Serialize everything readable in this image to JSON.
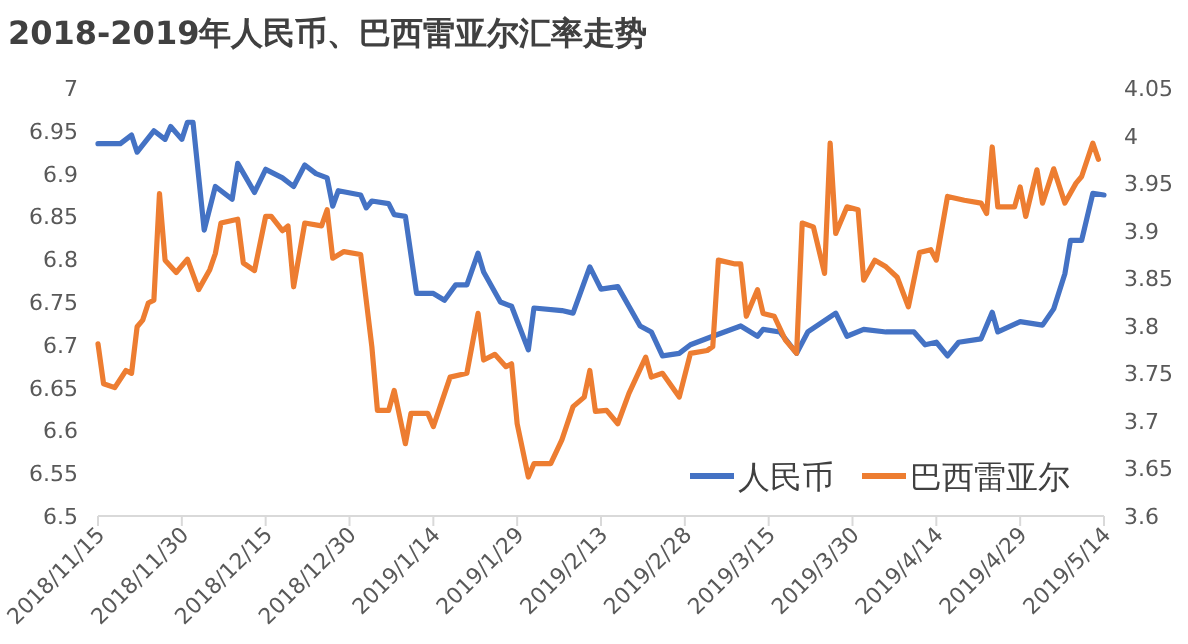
{
  "chart_data": {
    "type": "line",
    "title": "2018-2019年人民币、巴西雷亚尔汇率走势",
    "xlim": [
      "2018-11-15",
      "2019-05-14"
    ],
    "xticks": [
      {
        "value": "2018-11-15",
        "label": "2018/11/15"
      },
      {
        "value": "2018-11-30",
        "label": "2018/11/30"
      },
      {
        "value": "2018-12-15",
        "label": "2018/12/15"
      },
      {
        "value": "2018-12-30",
        "label": "2018/12/30"
      },
      {
        "value": "2019-01-14",
        "label": "2019/1/14"
      },
      {
        "value": "2019-01-29",
        "label": "2019/1/29"
      },
      {
        "value": "2019-02-13",
        "label": "2019/2/13"
      },
      {
        "value": "2019-02-28",
        "label": "2019/2/28"
      },
      {
        "value": "2019-03-15",
        "label": "2019/3/15"
      },
      {
        "value": "2019-03-30",
        "label": "2019/3/30"
      },
      {
        "value": "2019-04-14",
        "label": "2019/4/14"
      },
      {
        "value": "2019-04-29",
        "label": "2019/4/29"
      },
      {
        "value": "2019-05-14",
        "label": "2019/5/14"
      }
    ],
    "ylim": [
      6.5,
      7
    ],
    "yticks": [
      6.5,
      6.55,
      6.6,
      6.65,
      6.7,
      6.75,
      6.8,
      6.85,
      6.9,
      6.95,
      7
    ],
    "y2lim": [
      3.6,
      4.05
    ],
    "y2ticks": [
      3.6,
      3.65,
      3.7,
      3.75,
      3.8,
      3.85,
      3.9,
      3.95,
      4,
      4.05
    ],
    "legend": "bottom right",
    "marker": "none",
    "line_style": "solid",
    "series": [
      {
        "name": "人民币",
        "color": "#4472c4",
        "x": [
          "2018-11-15",
          "2018-11-19",
          "2018-11-21",
          "2018-11-22",
          "2018-11-25",
          "2018-11-27",
          "2018-11-28",
          "2018-11-30",
          "2018-12-01",
          "2018-12-02",
          "2018-12-04",
          "2018-12-06",
          "2018-12-09",
          "2018-12-10",
          "2018-12-13",
          "2018-12-15",
          "2018-12-18",
          "2018-12-20",
          "2018-12-22",
          "2018-12-24",
          "2018-12-26",
          "2018-12-27",
          "2018-12-28",
          "2019-01-01",
          "2019-01-02",
          "2019-01-03",
          "2019-01-06",
          "2019-01-07",
          "2019-01-09",
          "2019-01-11",
          "2019-01-14",
          "2019-01-16",
          "2019-01-18",
          "2019-01-20",
          "2019-01-22",
          "2019-01-23",
          "2019-01-26",
          "2019-01-28",
          "2019-01-31",
          "2019-02-01",
          "2019-02-06",
          "2019-02-08",
          "2019-02-11",
          "2019-02-13",
          "2019-02-16",
          "2019-02-20",
          "2019-02-22",
          "2019-02-24",
          "2019-02-27",
          "2019-03-01",
          "2019-03-05",
          "2019-03-10",
          "2019-03-13",
          "2019-03-14",
          "2019-03-17",
          "2019-03-20",
          "2019-03-22",
          "2019-03-27",
          "2019-03-29",
          "2019-04-01",
          "2019-04-05",
          "2019-04-10",
          "2019-04-12",
          "2019-04-14",
          "2019-04-16",
          "2019-04-18",
          "2019-04-22",
          "2019-04-24",
          "2019-04-25",
          "2019-04-29",
          "2019-05-03",
          "2019-05-05",
          "2019-05-07",
          "2019-05-08",
          "2019-05-10",
          "2019-05-12",
          "2019-05-14"
        ],
        "values": [
          6.935,
          6.935,
          6.945,
          6.925,
          6.95,
          6.94,
          6.955,
          6.94,
          6.96,
          6.96,
          6.834,
          6.885,
          6.87,
          6.912,
          6.878,
          6.905,
          6.895,
          6.885,
          6.91,
          6.9,
          6.895,
          6.862,
          6.88,
          6.875,
          6.86,
          6.868,
          6.865,
          6.852,
          6.85,
          6.76,
          6.76,
          6.752,
          6.77,
          6.77,
          6.807,
          6.785,
          6.75,
          6.745,
          6.694,
          6.743,
          6.74,
          6.737,
          6.791,
          6.765,
          6.768,
          6.722,
          6.715,
          6.687,
          6.69,
          6.7,
          6.71,
          6.722,
          6.71,
          6.718,
          6.715,
          6.69,
          6.715,
          6.737,
          6.71,
          6.718,
          6.715,
          6.715,
          6.7,
          6.703,
          6.687,
          6.703,
          6.707,
          6.738,
          6.715,
          6.727,
          6.723,
          6.742,
          6.783,
          6.822,
          6.822,
          6.877,
          6.875
        ]
      },
      {
        "name": "巴西雷亚尔",
        "color": "#ed7d31",
        "axis": "y2",
        "x": [
          "2018-11-15",
          "2018-11-16",
          "2018-11-18",
          "2018-11-20",
          "2018-11-21",
          "2018-11-22",
          "2018-11-23",
          "2018-11-24",
          "2018-11-25",
          "2018-11-26",
          "2018-11-27",
          "2018-11-29",
          "2018-12-01",
          "2018-12-03",
          "2018-12-05",
          "2018-12-06",
          "2018-12-07",
          "2018-12-10",
          "2018-12-11",
          "2018-12-13",
          "2018-12-15",
          "2018-12-16",
          "2018-12-18",
          "2018-12-19",
          "2018-12-20",
          "2018-12-22",
          "2018-12-25",
          "2018-12-26",
          "2018-12-27",
          "2018-12-29",
          "2019-01-01",
          "2019-01-03",
          "2019-01-04",
          "2019-01-06",
          "2019-01-07",
          "2019-01-09",
          "2019-01-10",
          "2019-01-13",
          "2019-01-14",
          "2019-01-17",
          "2019-01-20",
          "2019-01-22",
          "2019-01-23",
          "2019-01-25",
          "2019-01-27",
          "2019-01-28",
          "2019-01-29",
          "2019-01-31",
          "2019-02-01",
          "2019-02-04",
          "2019-02-06",
          "2019-02-08",
          "2019-02-10",
          "2019-02-11",
          "2019-02-12",
          "2019-02-14",
          "2019-02-16",
          "2019-02-18",
          "2019-02-21",
          "2019-02-22",
          "2019-02-24",
          "2019-02-27",
          "2019-03-01",
          "2019-03-04",
          "2019-03-05",
          "2019-03-06",
          "2019-03-09",
          "2019-03-10",
          "2019-03-11",
          "2019-03-13",
          "2019-03-14",
          "2019-03-16",
          "2019-03-18",
          "2019-03-20",
          "2019-03-21",
          "2019-03-23",
          "2019-03-25",
          "2019-03-26",
          "2019-03-27",
          "2019-03-29",
          "2019-03-31",
          "2019-04-01",
          "2019-04-03",
          "2019-04-05",
          "2019-04-07",
          "2019-04-09",
          "2019-04-11",
          "2019-04-13",
          "2019-04-14",
          "2019-04-16",
          "2019-04-19",
          "2019-04-22",
          "2019-04-23",
          "2019-04-24",
          "2019-04-25",
          "2019-04-28",
          "2019-04-29",
          "2019-04-30",
          "2019-05-02",
          "2019-05-03",
          "2019-05-05",
          "2019-05-07",
          "2019-05-09",
          "2019-05-10",
          "2019-05-12",
          "2019-05-13"
        ],
        "values": [
          3.781,
          3.739,
          3.735,
          3.753,
          3.75,
          3.799,
          3.806,
          3.824,
          3.827,
          3.939,
          3.869,
          3.856,
          3.87,
          3.838,
          3.859,
          3.876,
          3.908,
          3.912,
          3.866,
          3.858,
          3.915,
          3.915,
          3.9,
          3.905,
          3.841,
          3.908,
          3.905,
          3.922,
          3.871,
          3.878,
          3.875,
          3.778,
          3.711,
          3.711,
          3.732,
          3.676,
          3.708,
          3.708,
          3.694,
          3.746,
          3.75,
          3.813,
          3.764,
          3.77,
          3.757,
          3.76,
          3.697,
          3.641,
          3.655,
          3.655,
          3.68,
          3.715,
          3.725,
          3.753,
          3.71,
          3.711,
          3.697,
          3.729,
          3.767,
          3.746,
          3.75,
          3.725,
          3.771,
          3.774,
          3.778,
          3.869,
          3.865,
          3.865,
          3.81,
          3.838,
          3.813,
          3.81,
          3.785,
          3.771,
          3.908,
          3.904,
          3.855,
          3.992,
          3.897,
          3.925,
          3.922,
          3.848,
          3.869,
          3.862,
          3.851,
          3.82,
          3.877,
          3.88,
          3.869,
          3.936,
          3.932,
          3.929,
          3.918,
          3.988,
          3.925,
          3.925,
          3.946,
          3.915,
          3.964,
          3.929,
          3.965,
          3.929,
          3.95,
          3.957,
          3.992,
          3.975
        ]
      }
    ]
  }
}
